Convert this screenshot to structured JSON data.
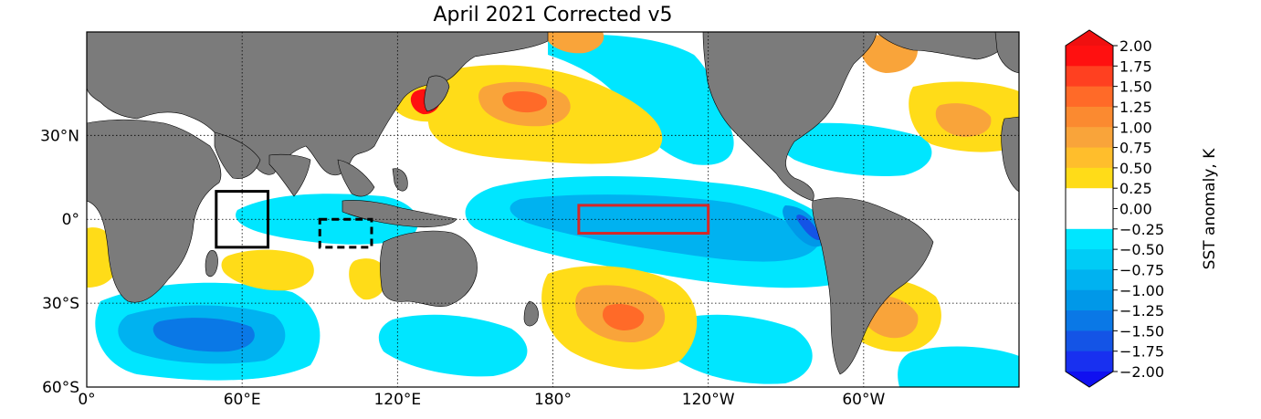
{
  "title": "April 2021 Corrected v5",
  "map": {
    "longitude_ticks": [
      {
        "value": 0,
        "label": "0°"
      },
      {
        "value": 60,
        "label": "60°E"
      },
      {
        "value": 120,
        "label": "120°E"
      },
      {
        "value": 180,
        "label": "180°"
      },
      {
        "value": 240,
        "label": "120°W"
      },
      {
        "value": 300,
        "label": "60°W"
      }
    ],
    "latitude_ticks": [
      {
        "value": 30,
        "label": "30°N"
      },
      {
        "value": 0,
        "label": "0°"
      },
      {
        "value": -30,
        "label": "30°S"
      },
      {
        "value": -60,
        "label": "60°S"
      }
    ],
    "lon_range": [
      0,
      360
    ],
    "lat_range": [
      -60,
      67
    ],
    "grid": "dotted",
    "land_color": "#7b7b7b",
    "region_boxes": [
      {
        "name": "western indian ocean box",
        "lon": [
          50,
          70
        ],
        "lat": [
          -10,
          10
        ],
        "color": "#000000",
        "style": "solid"
      },
      {
        "name": "eastern indian ocean box",
        "lon": [
          90,
          110
        ],
        "lat": [
          -10,
          0
        ],
        "color": "#000000",
        "style": "dashed"
      },
      {
        "name": "nino 3.4 box",
        "lon": [
          190,
          240
        ],
        "lat": [
          -5,
          5
        ],
        "color": "#d62728",
        "style": "solid"
      }
    ]
  },
  "colorbar": {
    "label": "SST anomaly, K",
    "tick_labels": [
      "2.00",
      "1.75",
      "1.50",
      "1.25",
      "1.00",
      "0.75",
      "0.50",
      "0.25",
      "0.00",
      "−0.25",
      "−0.50",
      "−0.75",
      "−1.00",
      "−1.25",
      "−1.50",
      "−1.75",
      "−2.00"
    ],
    "colors": [
      "#ff1010",
      "#ff4020",
      "#ff6a28",
      "#fb8a30",
      "#f9a43a",
      "#ffbe2c",
      "#ffdc18",
      "#ffffff",
      "#ffffff",
      "#00e6ff",
      "#00ccf6",
      "#00b2f0",
      "#0098e8",
      "#0a78e6",
      "#1454e6",
      "#1830f0"
    ],
    "over_color": "#f01010",
    "under_color": "#1010f0"
  }
}
